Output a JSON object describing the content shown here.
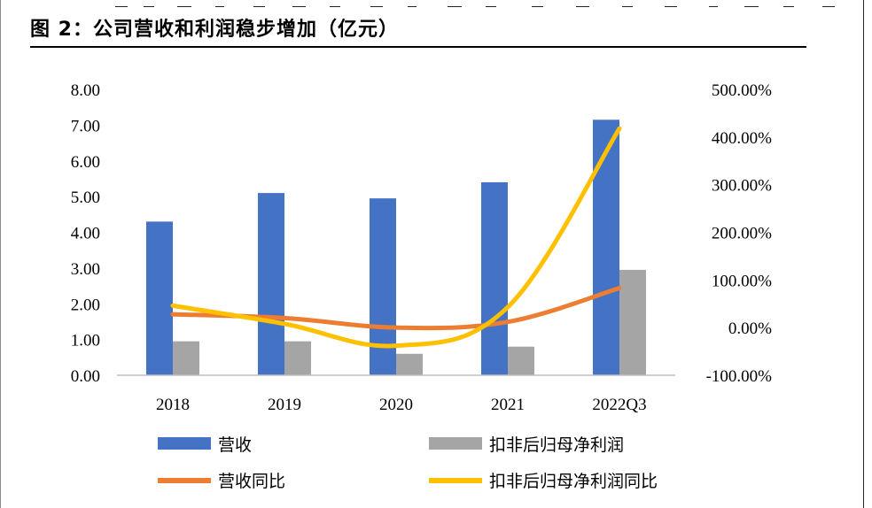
{
  "page": {
    "title": "图 2：公司营收和利润稳步增加（亿元）"
  },
  "chart_data": {
    "type": "bar",
    "title": "图 2：公司营收和利润稳步增加（亿元）",
    "categories": [
      "2018",
      "2019",
      "2020",
      "2021",
      "2022Q3"
    ],
    "series": [
      {
        "name": "营收",
        "type": "bar",
        "axis": "left",
        "color": "#4472C4",
        "values": [
          4.3,
          5.1,
          4.95,
          5.4,
          7.15
        ]
      },
      {
        "name": "扣非后归母净利润",
        "type": "bar",
        "axis": "left",
        "color": "#A5A5A5",
        "values": [
          0.95,
          0.95,
          0.6,
          0.8,
          2.95
        ]
      },
      {
        "name": "营收同比",
        "type": "line",
        "axis": "right",
        "color": "#ED7D31",
        "values": [
          28,
          20,
          0,
          12,
          83
        ]
      },
      {
        "name": "扣非后归母净利润同比",
        "type": "line",
        "axis": "right",
        "color": "#FFC000",
        "values": [
          46,
          8,
          -38,
          43,
          418
        ]
      }
    ],
    "y_left": {
      "min": 0,
      "max": 8,
      "ticks": [
        "0.00",
        "1.00",
        "2.00",
        "3.00",
        "4.00",
        "5.00",
        "6.00",
        "7.00",
        "8.00"
      ]
    },
    "y_right": {
      "min": -100,
      "max": 500,
      "ticks": [
        "-100.00%",
        "0.00%",
        "100.00%",
        "200.00%",
        "300.00%",
        "400.00%",
        "500.00%"
      ]
    },
    "grid": false,
    "legend_position": "bottom"
  }
}
